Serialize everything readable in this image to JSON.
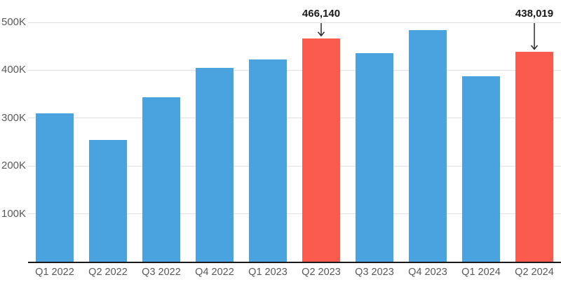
{
  "chart_data": {
    "type": "bar",
    "categories": [
      "Q1 2022",
      "Q2 2022",
      "Q3 2022",
      "Q4 2022",
      "Q1 2023",
      "Q2 2023",
      "Q3 2023",
      "Q4 2023",
      "Q1 2024",
      "Q2 2024"
    ],
    "values": [
      310000,
      255000,
      344000,
      405000,
      423000,
      466140,
      435000,
      484000,
      387000,
      438019
    ],
    "highlighted_indices": [
      5,
      9
    ],
    "annotations": [
      {
        "index": 5,
        "label": "466,140"
      },
      {
        "index": 9,
        "label": "438,019"
      }
    ],
    "yticks": [
      {
        "value": 100000,
        "label": "100K"
      },
      {
        "value": 200000,
        "label": "200K"
      },
      {
        "value": 300000,
        "label": "300K"
      },
      {
        "value": 400000,
        "label": "400K"
      },
      {
        "value": 500000,
        "label": "500K"
      }
    ],
    "ylim": [
      0,
      500000
    ],
    "grid": "horizontal",
    "legend": "none",
    "colors": {
      "bar_default": "#4aa2df",
      "bar_highlight": "#fb5a4f",
      "gridline": "#e1e1e1",
      "axis_line": "#1a1a1a",
      "tick_label": "#595959",
      "annotation_text": "#1a1a1a",
      "arrow": "#2b2b2b",
      "background": "#ffffff"
    }
  }
}
